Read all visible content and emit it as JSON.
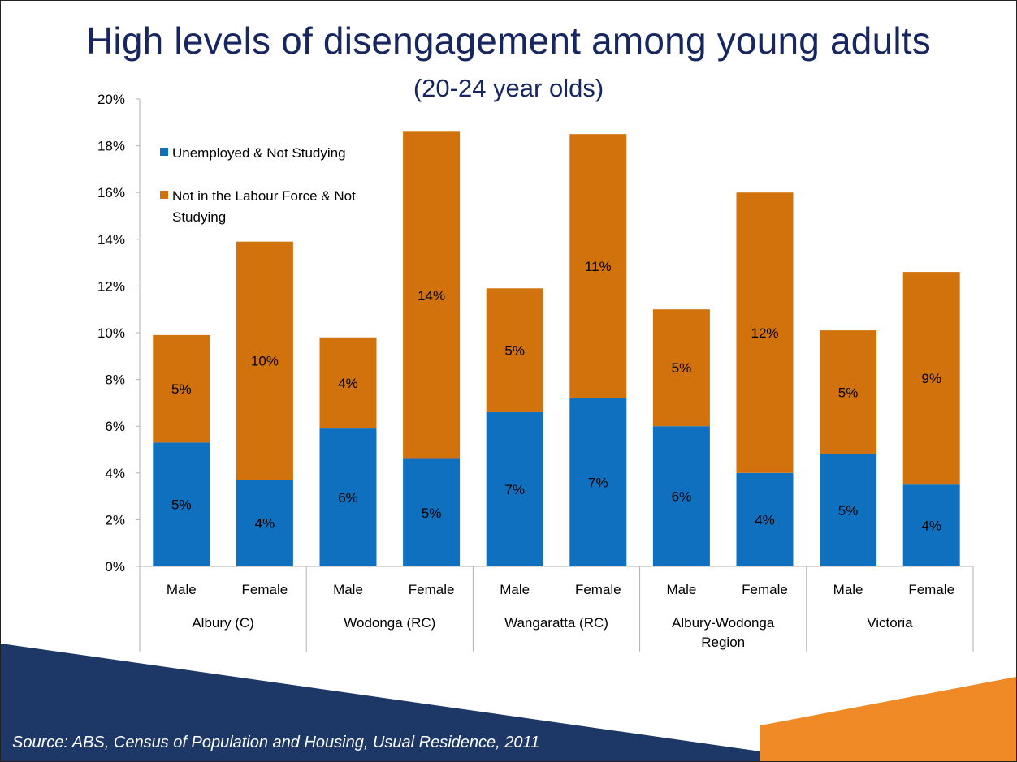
{
  "title": "High levels of disengagement among young adults",
  "subtitle": "(20-24 year olds)",
  "source": "Source: ABS, Census of Population and Housing, Usual Residence, 2011",
  "colors": {
    "unemployed": "#0f70c0",
    "not_in_labour_force": "#d1720d",
    "title": "#17265e",
    "footer_navy": "#1d3866",
    "footer_orange": "#ef8a26"
  },
  "chart_data": {
    "type": "bar",
    "stacked": true,
    "ylim": [
      0,
      20
    ],
    "ytick_labels": [
      "0%",
      "2%",
      "4%",
      "6%",
      "8%",
      "10%",
      "12%",
      "14%",
      "16%",
      "18%",
      "20%"
    ],
    "groups": [
      {
        "name": "Albury (C)",
        "name_lines": [
          "Albury (C)"
        ]
      },
      {
        "name": "Wodonga (RC)",
        "name_lines": [
          "Wodonga (RC)"
        ]
      },
      {
        "name": "Wangaratta (RC)",
        "name_lines": [
          "Wangaratta (RC)"
        ]
      },
      {
        "name": "Albury-Wodonga Region",
        "name_lines": [
          "Albury-Wodonga",
          "Region"
        ]
      },
      {
        "name": "Victoria",
        "name_lines": [
          "Victoria"
        ]
      }
    ],
    "categories": [
      "Male",
      "Female",
      "Male",
      "Female",
      "Male",
      "Female",
      "Male",
      "Female",
      "Male",
      "Female"
    ],
    "legend_position": "top-left",
    "series": [
      {
        "name": "Unemployed & Not Studying",
        "legend_lines": [
          "Unemployed & Not Studying"
        ],
        "values": [
          5.3,
          3.7,
          5.9,
          4.6,
          6.6,
          7.2,
          6.0,
          4.0,
          4.8,
          3.5
        ],
        "labels": [
          "5%",
          "4%",
          "6%",
          "5%",
          "7%",
          "7%",
          "6%",
          "4%",
          "5%",
          "4%"
        ]
      },
      {
        "name": "Not in the Labour Force & Not Studying",
        "legend_lines": [
          "Not in the Labour Force & Not",
          "Studying"
        ],
        "values": [
          4.6,
          10.2,
          3.9,
          14.0,
          5.3,
          11.3,
          5.0,
          12.0,
          5.3,
          9.1
        ],
        "labels": [
          "5%",
          "10%",
          "4%",
          "14%",
          "5%",
          "11%",
          "5%",
          "12%",
          "5%",
          "9%"
        ]
      }
    ]
  }
}
